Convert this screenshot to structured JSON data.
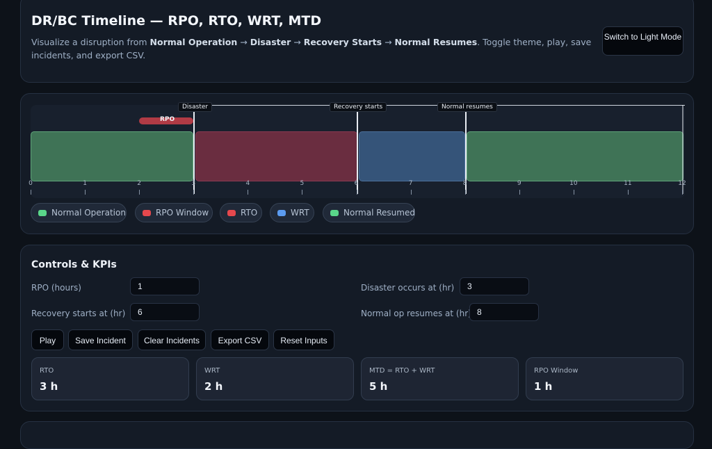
{
  "header": {
    "title": "DR/BC Timeline — RPO, RTO, WRT, MTD",
    "subtitle_prefix": "Visualize a disruption from ",
    "phase1": "Normal Operation",
    "arrow": " → ",
    "phase2": "Disaster",
    "phase3": "Recovery Starts",
    "phase4": "Normal Resumes",
    "subtitle_suffix": ". Toggle theme, play, save incidents, and export CSV.",
    "theme_button": "Switch to Light Mode"
  },
  "timeline": {
    "markers": {
      "disaster": "Disaster",
      "recovery": "Recovery starts",
      "resumes": "Normal resumes"
    },
    "rpo_label": "RPO",
    "ticks": [
      "0",
      "1",
      "2",
      "3",
      "4",
      "5",
      "6",
      "7",
      "8",
      "9",
      "10",
      "11",
      "12"
    ],
    "hours_total": 12,
    "legend": [
      {
        "label": "Normal Operation",
        "color": "#5ad68a"
      },
      {
        "label": "RPO Window",
        "color": "#e5484d"
      },
      {
        "label": "RTO",
        "color": "#e5484d"
      },
      {
        "label": "WRT",
        "color": "#5b9bf0"
      },
      {
        "label": "Normal Resumed",
        "color": "#5ad68a"
      }
    ]
  },
  "controls": {
    "title": "Controls & KPIs",
    "rpo_label": "RPO (hours)",
    "rpo_value": "1",
    "disaster_label": "Disaster occurs at (hr)",
    "disaster_value": "3",
    "recovery_label": "Recovery starts at (hr)",
    "recovery_value": "6",
    "resume_label": "Normal op resumes at (hr)",
    "resume_value": "8",
    "buttons": {
      "play": "Play",
      "save": "Save Incident",
      "clear": "Clear Incidents",
      "export": "Export CSV",
      "reset": "Reset Inputs"
    }
  },
  "kpis": [
    {
      "label": "RTO",
      "value": "3 h"
    },
    {
      "label": "WRT",
      "value": "2 h"
    },
    {
      "label": "MTD = RTO + WRT",
      "value": "5 h"
    },
    {
      "label": "RPO Window",
      "value": "1 h"
    }
  ]
}
